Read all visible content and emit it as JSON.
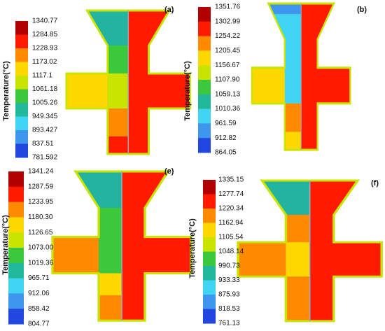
{
  "panels": [
    {
      "label": "(a)",
      "axis_title": "Temperature(°C)",
      "legend": [
        "1340.77",
        "1284.85",
        "1228.93",
        "1173.02",
        "1117.1",
        "1061.18",
        "1005.26",
        "949.345",
        "893.427",
        "837.51",
        "781.592"
      ]
    },
    {
      "label": "(b)",
      "axis_title": "Temperature(°C)",
      "legend": [
        "1351.76",
        "1302.99",
        "1254.22",
        "1205.45",
        "1156.67",
        "1107.90",
        "1059.13",
        "1010.36",
        "961.59",
        "912.82",
        "864.05"
      ]
    },
    {
      "label": "(e)",
      "axis_title": "Temperature(°C)",
      "legend": [
        "1341.24",
        "1287.59",
        "1233.95",
        "1180.30",
        "1126.65",
        "1073.00",
        "1019.36",
        "965.71",
        "912.06",
        "858.42",
        "804.77"
      ]
    },
    {
      "label": "(f)",
      "axis_title": "Temperature(°C)",
      "legend": [
        "1335.15",
        "1277.74",
        "1220.34",
        "1162.94",
        "1105.54",
        "1048.14",
        "990.73",
        "933.33",
        "875.93",
        "818.53",
        "761.13"
      ]
    }
  ]
}
